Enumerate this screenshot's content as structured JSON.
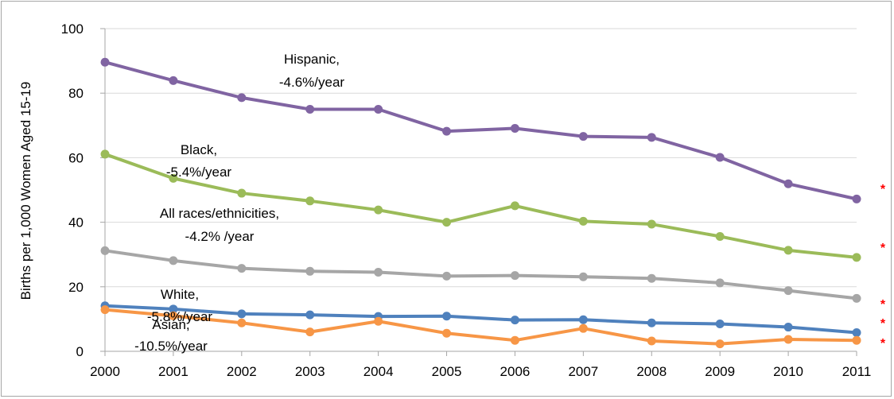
{
  "chart_data": {
    "type": "line",
    "ylabel": "Births per 1,000 Women Aged 15-19",
    "xlabel": "",
    "title": "",
    "x": [
      "2000",
      "2001",
      "2002",
      "2003",
      "2004",
      "2005",
      "2006",
      "2007",
      "2008",
      "2009",
      "2010",
      "2011"
    ],
    "ylim": [
      0,
      100
    ],
    "yticks": [
      0,
      20,
      40,
      60,
      80,
      100
    ],
    "grid": true,
    "legend": "none",
    "series": [
      {
        "key": "hispanic",
        "label_lines": [
          "Hispanic,",
          "-4.6%/year"
        ],
        "color": "#8064a2",
        "values": [
          89.6,
          83.9,
          78.6,
          75.0,
          75.0,
          68.2,
          69.1,
          66.6,
          66.3,
          60.1,
          51.9,
          47.2
        ],
        "marker": "*"
      },
      {
        "key": "black",
        "label_lines": [
          "Black,",
          "-5.4%/year"
        ],
        "color": "#9bbb59",
        "values": [
          61.1,
          53.6,
          49.0,
          46.6,
          43.8,
          40.0,
          45.1,
          40.3,
          39.4,
          35.6,
          31.3,
          29.1
        ],
        "marker": "*"
      },
      {
        "key": "all",
        "label_lines": [
          "All races/ethnicities,",
          "-4.2% /year"
        ],
        "color": "#a6a6a6",
        "values": [
          31.2,
          28.1,
          25.7,
          24.8,
          24.5,
          23.3,
          23.5,
          23.1,
          22.6,
          21.2,
          18.8,
          16.4
        ],
        "marker": "*"
      },
      {
        "key": "white",
        "label_lines": [
          "White,",
          "-5.8%/year"
        ],
        "color": "#4f81bd",
        "values": [
          14.1,
          13.1,
          11.6,
          11.3,
          10.8,
          10.9,
          9.7,
          9.8,
          8.8,
          8.5,
          7.5,
          5.8
        ],
        "marker": "*"
      },
      {
        "key": "asian",
        "label_lines": [
          "Asian,",
          "-10.5%/year"
        ],
        "color": "#f79646",
        "values": [
          12.9,
          11.0,
          8.8,
          6.0,
          9.3,
          5.6,
          3.4,
          7.1,
          3.2,
          2.3,
          3.7,
          3.4
        ],
        "marker": "*"
      }
    ],
    "marker_color": "#ff0000"
  }
}
